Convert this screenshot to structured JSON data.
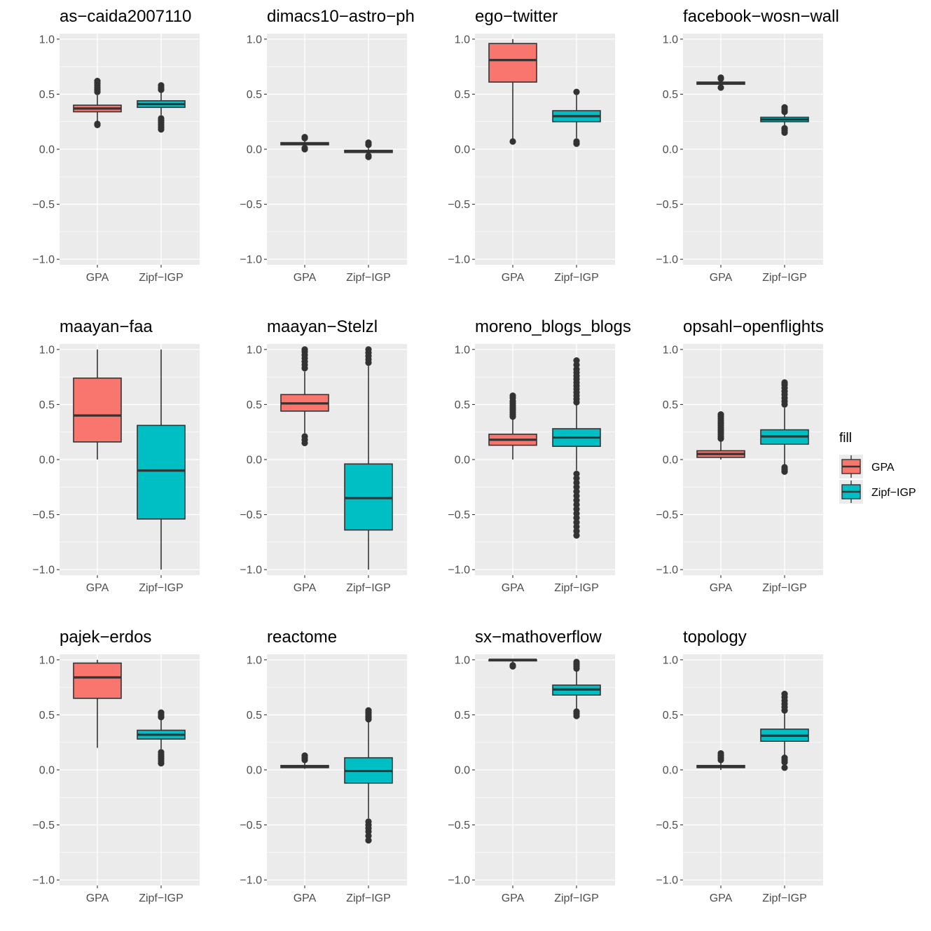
{
  "chart_data": {
    "type": "box",
    "layout": "facet-grid 3x4",
    "y_ticks": [
      1.0,
      0.5,
      0.0,
      -0.5,
      -1.0
    ],
    "y_tick_labels": [
      "1.0",
      "0.5",
      "0.0",
      "−0.5",
      "−1.0"
    ],
    "ylim": [
      -1.05,
      1.05
    ],
    "categories": [
      "GPA",
      "Zipf−IGP"
    ],
    "colors": {
      "GPA": "#F8766D",
      "Zipf−IGP": "#00BFC4",
      "panel_bg": "#EBEBEB",
      "grid": "#FFFFFF",
      "box_line": "#333333"
    },
    "legend": {
      "title": "fill",
      "entries": [
        "GPA",
        "Zipf−IGP"
      ],
      "placement": "right"
    },
    "panels": [
      {
        "title": "as−caida2007110",
        "boxes": [
          {
            "group": "GPA",
            "q1": 0.34,
            "median": 0.37,
            "q3": 0.4,
            "wlow": 0.25,
            "whigh": 0.49,
            "outliers": [
              0.52,
              0.54,
              0.56,
              0.58,
              0.6,
              0.62,
              0.22,
              0.23
            ]
          },
          {
            "group": "Zipf−IGP",
            "q1": 0.38,
            "median": 0.41,
            "q3": 0.44,
            "wlow": 0.31,
            "whigh": 0.53,
            "outliers": [
              0.54,
              0.56,
              0.58,
              0.18,
              0.2,
              0.22,
              0.24,
              0.26,
              0.28
            ]
          }
        ]
      },
      {
        "title": "dimacs10−astro−ph",
        "boxes": [
          {
            "group": "GPA",
            "q1": 0.04,
            "median": 0.05,
            "q3": 0.06,
            "wlow": 0.02,
            "whigh": 0.08,
            "outliers": [
              0.1,
              0.11,
              0.0,
              0.01
            ]
          },
          {
            "group": "Zipf−IGP",
            "q1": -0.03,
            "median": -0.02,
            "q3": -0.01,
            "wlow": -0.04,
            "whigh": 0.01,
            "outliers": [
              0.04,
              0.06,
              -0.06,
              -0.07
            ]
          }
        ]
      },
      {
        "title": "ego−twitter",
        "boxes": [
          {
            "group": "GPA",
            "q1": 0.61,
            "median": 0.81,
            "q3": 0.96,
            "wlow": 0.09,
            "whigh": 1.0,
            "outliers": [
              0.07
            ]
          },
          {
            "group": "Zipf−IGP",
            "q1": 0.25,
            "median": 0.3,
            "q3": 0.35,
            "wlow": 0.1,
            "whigh": 0.49,
            "outliers": [
              0.52,
              0.05,
              0.07
            ]
          }
        ]
      },
      {
        "title": "facebook−wosn−wall",
        "boxes": [
          {
            "group": "GPA",
            "q1": 0.59,
            "median": 0.6,
            "q3": 0.61,
            "wlow": 0.57,
            "whigh": 0.63,
            "outliers": [
              0.64,
              0.65,
              0.56
            ]
          },
          {
            "group": "Zipf−IGP",
            "q1": 0.25,
            "median": 0.27,
            "q3": 0.29,
            "wlow": 0.21,
            "whigh": 0.33,
            "outliers": [
              0.34,
              0.36,
              0.38,
              0.15,
              0.17,
              0.19
            ]
          }
        ]
      },
      {
        "title": "maayan−faa",
        "boxes": [
          {
            "group": "GPA",
            "q1": 0.16,
            "median": 0.4,
            "q3": 0.74,
            "wlow": 0.0,
            "whigh": 1.0,
            "outliers": []
          },
          {
            "group": "Zipf−IGP",
            "q1": -0.54,
            "median": -0.1,
            "q3": 0.31,
            "wlow": -1.0,
            "whigh": 1.0,
            "outliers": []
          }
        ]
      },
      {
        "title": "maayan−Stelzl",
        "boxes": [
          {
            "group": "GPA",
            "q1": 0.44,
            "median": 0.51,
            "q3": 0.59,
            "wlow": 0.24,
            "whigh": 0.8,
            "outliers": [
              0.83,
              0.86,
              0.89,
              0.92,
              0.95,
              0.98,
              1.0,
              0.21,
              0.18,
              0.15
            ]
          },
          {
            "group": "Zipf−IGP",
            "q1": -0.64,
            "median": -0.35,
            "q3": -0.04,
            "wlow": -1.0,
            "whigh": 0.85,
            "outliers": [
              0.88,
              0.91,
              0.94,
              0.97,
              1.0
            ]
          }
        ]
      },
      {
        "title": "moreno_blogs_blogs",
        "boxes": [
          {
            "group": "GPA",
            "q1": 0.13,
            "median": 0.18,
            "q3": 0.23,
            "wlow": 0.0,
            "whigh": 0.37,
            "outliers": [
              0.39,
              0.41,
              0.43,
              0.45,
              0.47,
              0.49,
              0.51,
              0.53,
              0.56,
              0.58
            ]
          },
          {
            "group": "Zipf−IGP",
            "q1": 0.12,
            "median": 0.2,
            "q3": 0.28,
            "wlow": -0.1,
            "whigh": 0.5,
            "outliers": [
              0.52,
              0.55,
              0.58,
              0.61,
              0.64,
              0.67,
              0.7,
              0.73,
              0.76,
              0.79,
              0.82,
              0.86,
              0.9,
              -0.13,
              -0.17,
              -0.21,
              -0.25,
              -0.29,
              -0.33,
              -0.37,
              -0.41,
              -0.45,
              -0.49,
              -0.53,
              -0.57,
              -0.61,
              -0.65,
              -0.69
            ]
          }
        ]
      },
      {
        "title": "opsahl−openflights",
        "boxes": [
          {
            "group": "GPA",
            "q1": 0.02,
            "median": 0.05,
            "q3": 0.08,
            "wlow": 0.0,
            "whigh": 0.17,
            "outliers": [
              0.19,
              0.21,
              0.23,
              0.25,
              0.27,
              0.29,
              0.31,
              0.33,
              0.35,
              0.37,
              0.39,
              0.41
            ]
          },
          {
            "group": "Zipf−IGP",
            "q1": 0.14,
            "median": 0.21,
            "q3": 0.27,
            "wlow": -0.05,
            "whigh": 0.47,
            "outliers": [
              0.5,
              0.53,
              0.56,
              0.59,
              0.62,
              0.65,
              0.68,
              0.7,
              -0.07,
              -0.09,
              -0.11
            ]
          }
        ]
      },
      {
        "title": "pajek−erdos",
        "boxes": [
          {
            "group": "GPA",
            "q1": 0.65,
            "median": 0.84,
            "q3": 0.97,
            "wlow": 0.2,
            "whigh": 1.0,
            "outliers": []
          },
          {
            "group": "Zipf−IGP",
            "q1": 0.28,
            "median": 0.32,
            "q3": 0.36,
            "wlow": 0.19,
            "whigh": 0.46,
            "outliers": [
              0.48,
              0.5,
              0.52,
              0.06,
              0.08,
              0.1,
              0.12,
              0.14,
              0.16
            ]
          }
        ]
      },
      {
        "title": "reactome",
        "boxes": [
          {
            "group": "GPA",
            "q1": 0.02,
            "median": 0.03,
            "q3": 0.04,
            "wlow": 0.01,
            "whigh": 0.07,
            "outliers": [
              0.09,
              0.11,
              0.13
            ]
          },
          {
            "group": "Zipf−IGP",
            "q1": -0.12,
            "median": -0.01,
            "q3": 0.11,
            "wlow": -0.44,
            "whigh": 0.44,
            "outliers": [
              0.46,
              0.48,
              0.5,
              0.52,
              0.54,
              -0.47,
              -0.5,
              -0.53,
              -0.56,
              -0.6,
              -0.64
            ]
          }
        ]
      },
      {
        "title": "sx−mathoverflow",
        "boxes": [
          {
            "group": "GPA",
            "q1": 0.99,
            "median": 1.0,
            "q3": 1.0,
            "wlow": 0.97,
            "whigh": 1.0,
            "outliers": [
              0.95,
              0.94
            ]
          },
          {
            "group": "Zipf−IGP",
            "q1": 0.68,
            "median": 0.73,
            "q3": 0.77,
            "wlow": 0.55,
            "whigh": 0.9,
            "outliers": [
              0.92,
              0.94,
              0.96,
              0.98,
              0.53,
              0.51,
              0.49
            ]
          }
        ]
      },
      {
        "title": "topology",
        "boxes": [
          {
            "group": "GPA",
            "q1": 0.02,
            "median": 0.03,
            "q3": 0.04,
            "wlow": 0.0,
            "whigh": 0.07,
            "outliers": [
              0.09,
              0.11,
              0.13,
              0.15
            ]
          },
          {
            "group": "Zipf−IGP",
            "q1": 0.26,
            "median": 0.31,
            "q3": 0.37,
            "wlow": 0.13,
            "whigh": 0.52,
            "outliers": [
              0.54,
              0.57,
              0.6,
              0.63,
              0.66,
              0.69,
              0.11,
              0.09,
              0.07,
              0.02
            ]
          }
        ]
      }
    ]
  }
}
